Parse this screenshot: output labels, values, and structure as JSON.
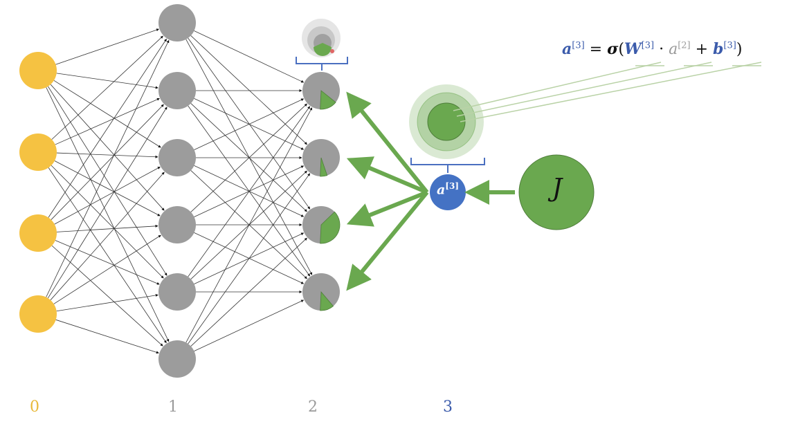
{
  "layer_labels": [
    {
      "text": "0",
      "color": "#e8b93a"
    },
    {
      "text": "1",
      "color": "#9a9a9a"
    },
    {
      "text": "2",
      "color": "#9a9a9a"
    },
    {
      "text": "3",
      "color": "#3b5bab"
    }
  ],
  "layers": {
    "input_count": 4,
    "hidden1_count": 6,
    "hidden2_count": 4
  },
  "colors": {
    "input_node": "#f5c242",
    "hidden_node": "#9c9c9c",
    "output_node": "#4472c4",
    "cost_node": "#6aa84f",
    "arrow": "#6aa84f",
    "bracket": "#4a6fc0",
    "gray_text": "#9a9a9a"
  },
  "hidden2_wedge_fractions": [
    0.15,
    0.06,
    0.38,
    0.12
  ],
  "output_node": {
    "label_base": "a",
    "label_sup": "[3]"
  },
  "cost_node": {
    "label": "J"
  },
  "formula": {
    "lhs": "a",
    "lhs_sup": "[3]",
    "eq": " = ",
    "sigma": "σ",
    "open": "(",
    "w": "W",
    "w_sup": "[3]",
    "dot": " · ",
    "a_prev": "a",
    "a_prev_sup": "[2]",
    "plus": " + ",
    "b": "b",
    "b_sup": "[3]",
    "close": ")"
  }
}
